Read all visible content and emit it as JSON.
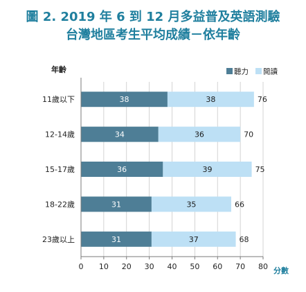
{
  "chart_data": {
    "type": "bar",
    "stacked": true,
    "orientation": "horizontal",
    "title": "圖 2. 2019 年 6 到 12 月多益普及英語測驗",
    "subtitle": "台灣地區考生平均成績－依年齡",
    "ylabel": "年齡",
    "xlabel": "分數",
    "categories": [
      "11歲以下",
      "12-14歲",
      "15-17歲",
      "18-22歲",
      "23歲以上"
    ],
    "series": [
      {
        "name": "聽力",
        "values": [
          38,
          34,
          36,
          31,
          31
        ]
      },
      {
        "name": "閱讀",
        "values": [
          38,
          36,
          39,
          35,
          37
        ]
      }
    ],
    "totals": [
      76,
      70,
      75,
      66,
      68
    ],
    "xlim": [
      0,
      80
    ],
    "xticks": [
      0,
      10,
      20,
      30,
      40,
      50,
      60,
      70,
      80
    ],
    "grid": true,
    "legend_position": "top-right"
  },
  "colors": {
    "title": "#1f7f9e",
    "series": [
      "#4e7e96",
      "#bde0f5"
    ],
    "segment_label": [
      "#ffffff",
      "#1a1a1a"
    ],
    "text": "#222222",
    "gridline": "#c8c8c8",
    "axis": "#7a7a7a",
    "xlabel": "#1f7f9e"
  }
}
